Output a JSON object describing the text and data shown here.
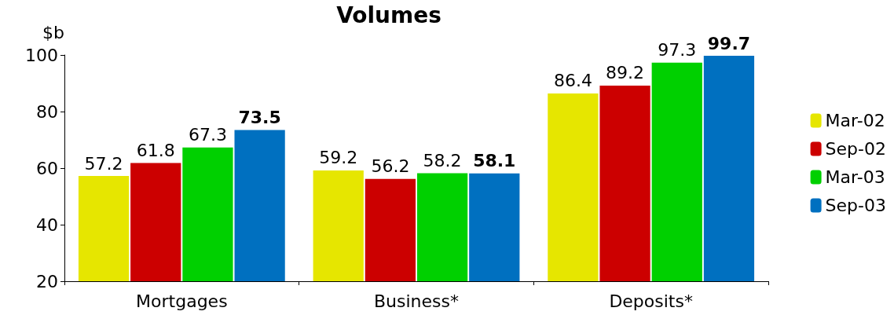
{
  "chart_data": {
    "type": "bar",
    "title": "Volumes",
    "ylabel": "$b",
    "categories": [
      "Mortgages",
      "Business*",
      "Deposits*"
    ],
    "series": [
      {
        "name": "Mar-02",
        "color": "#e6e600",
        "values": [
          57.2,
          59.2,
          86.4
        ]
      },
      {
        "name": "Sep-02",
        "color": "#cc0000",
        "values": [
          61.8,
          56.2,
          89.2
        ]
      },
      {
        "name": "Mar-03",
        "color": "#00d000",
        "values": [
          67.3,
          58.2,
          97.3
        ]
      },
      {
        "name": "Sep-03",
        "color": "#0070c0",
        "values": [
          73.5,
          58.1,
          99.7
        ]
      }
    ],
    "ylim": [
      20,
      100
    ],
    "yticks": [
      20,
      40,
      60,
      80,
      100
    ],
    "grid": false,
    "legend": "right",
    "data_labels": true
  }
}
